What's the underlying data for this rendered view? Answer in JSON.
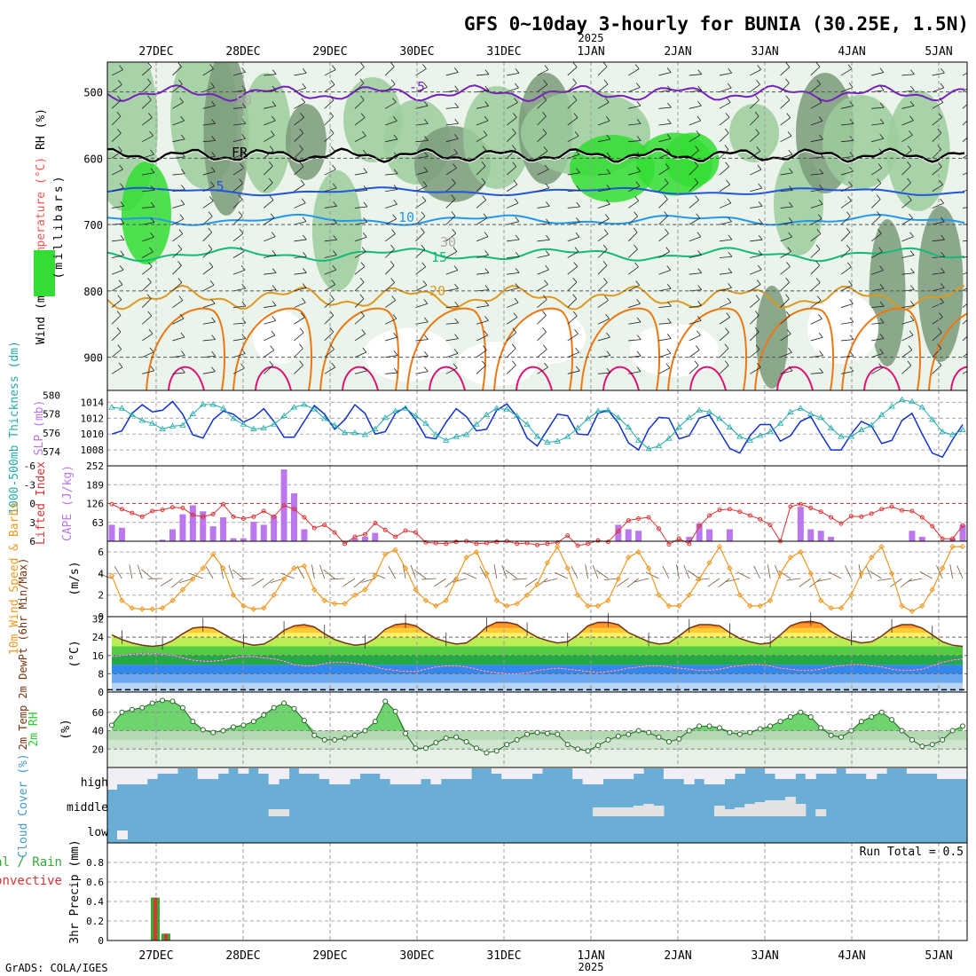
{
  "title": "GFS 0~10day 3-hourly for BUNIA (30.25E, 1.5N)",
  "footer": "GrADS: COLA/IGES",
  "run_total": "Run Total = 0.5",
  "date_labels": [
    "27DEC",
    "28DEC",
    "29DEC",
    "30DEC",
    "31DEC",
    "1JAN",
    "2JAN",
    "3JAN",
    "4JAN",
    "5JAN"
  ],
  "year_label": "2025",
  "colors": {
    "rh_light": "#e6f2e6",
    "rh_mid": "#9ccc9c",
    "rh_dark": "#7a9a7a",
    "rh_bright": "#33dd33",
    "temp_purple": "#7a1fbf",
    "temp_freeze": "#000000",
    "temp_blue": "#2255dd",
    "temp_cyan": "#2299ee",
    "temp_green": "#11bb77",
    "temp_gold": "#dd9922",
    "temp_orange": "#ee7711",
    "temp_magenta": "#dd1177",
    "slp": "#1133cc",
    "thickness": "#22aaaa",
    "cape": "#bb77ee",
    "lifted": "#dd3333",
    "wind10": "#ee9922",
    "temp2m": "#773311",
    "dewpt": "#9966aa",
    "rh2m": "#33cc33",
    "cloud": "#6aaed6",
    "precip_total": "#33aa33",
    "precip_conv": "#dd3333"
  },
  "chart_data": [
    {
      "panel": "upper-air",
      "type": "heatmap",
      "ylabels": [
        "Wind (m/s)",
        "Temperature (°C)",
        "RH (%)"
      ],
      "ylabel_units": "(millibars)",
      "y_ticks": [
        500,
        600,
        700,
        800,
        900
      ],
      "ylim": [
        950,
        455
      ],
      "contour_labels": [
        "-5",
        "FR",
        "5",
        "10",
        "15",
        "20",
        "30",
        "50"
      ]
    },
    {
      "panel": "slp-thickness",
      "type": "line",
      "ylabel_left": "1000-500mb Thickness (dm)",
      "ylabel_right": "SLP (mb)",
      "thickness_ticks": [
        574,
        576,
        578,
        580
      ],
      "slp_ticks": [
        1008,
        1010,
        1012,
        1014
      ],
      "series": [
        {
          "name": "SLP",
          "values": [
            1010.0,
            1010.4,
            1012.6,
            1013.7,
            1012.8,
            1013.0,
            1014.1,
            1012.5,
            1009.9,
            1009.5,
            1011.8,
            1012.9,
            1012.5,
            1011.5,
            1012.1,
            1013.2,
            1011.6,
            1009.6,
            1009.6,
            1011.6,
            1013.6,
            1012.5,
            1010.6,
            1011.8,
            1013.7,
            1012.6,
            1010.0,
            1010.3,
            1012.6,
            1013.4,
            1011.8,
            1009.6,
            1009.4,
            1011.5,
            1013.2,
            1012.2,
            1010.4,
            1010.6,
            1013.0,
            1013.8,
            1012.2,
            1009.5,
            1008.5,
            1010.5,
            1012.5,
            1012.3,
            1010.0,
            1009.9,
            1012.6,
            1013.0,
            1011.4,
            1008.9,
            1008.0,
            1010.6,
            1012.1,
            1012.0,
            1009.4,
            1009.8,
            1012.0,
            1012.4,
            1010.3,
            1008.2,
            1007.6,
            1009.8,
            1011.2,
            1011.2,
            1009.1,
            1009.8,
            1011.6,
            1012.2,
            1010.0,
            1008.0,
            1008.0,
            1010.0,
            1011.6,
            1011.0,
            1008.8,
            1009.2,
            1011.7,
            1012.6,
            1010.0,
            1007.6,
            1007.1,
            1009.3,
            1011.2
          ]
        },
        {
          "name": "1000-500mb Thickness",
          "values": [
            578.7,
            578.6,
            577.9,
            577.3,
            577.0,
            576.4,
            576.7,
            576.8,
            578.0,
            579.0,
            579.0,
            578.6,
            577.5,
            576.9,
            576.4,
            576.5,
            576.9,
            577.8,
            578.7,
            579.0,
            578.5,
            577.5,
            576.8,
            576.0,
            576.0,
            575.8,
            576.4,
            577.6,
            578.3,
            578.6,
            577.8,
            577.0,
            575.8,
            575.2,
            575.6,
            575.8,
            576.9,
            577.9,
            578.6,
            578.5,
            577.8,
            576.9,
            575.6,
            575.0,
            575.1,
            575.6,
            576.5,
            577.5,
            578.3,
            578.4,
            577.6,
            576.6,
            575.2,
            574.3,
            574.6,
            575.4,
            576.6,
            577.6,
            578.4,
            578.2,
            577.5,
            576.6,
            575.6,
            575.2,
            575.7,
            576.1,
            577.0,
            578.2,
            578.6,
            578.0,
            577.6,
            576.5,
            575.6,
            575.6,
            576.3,
            576.8,
            577.9,
            578.8,
            579.5,
            579.3,
            578.7,
            577.4,
            576.1,
            575.8,
            576.3
          ]
        }
      ]
    },
    {
      "panel": "cape-lifted-index",
      "type": "bar",
      "ylabel_left": "Lifted Index",
      "ylabel_right": "CAPE (J/kg)",
      "li_ticks": [
        "-6",
        "-3",
        "0",
        "3",
        "6"
      ],
      "cape_ticks": [
        63,
        126,
        189,
        252
      ],
      "cape_ylim": [
        0,
        252
      ],
      "li_ylim": [
        -6,
        6
      ],
      "series": [
        {
          "name": "CAPE",
          "values": [
            55,
            45,
            0,
            0,
            0,
            5,
            40,
            90,
            120,
            100,
            50,
            80,
            10,
            10,
            65,
            55,
            85,
            240,
            160,
            40,
            0,
            0,
            0,
            0,
            10,
            15,
            28,
            0,
            0,
            0,
            0,
            0,
            0,
            0,
            0,
            0,
            0,
            0,
            0,
            0,
            0,
            0,
            0,
            0,
            0,
            0,
            0,
            0,
            0,
            0,
            55,
            40,
            35,
            0,
            0,
            0,
            0,
            15,
            60,
            40,
            0,
            40,
            0,
            0,
            0,
            0,
            0,
            0,
            115,
            40,
            35,
            15,
            0,
            0,
            0,
            0,
            0,
            0,
            0,
            35,
            15,
            0,
            0,
            10,
            55
          ]
        },
        {
          "name": "Lifted Index",
          "values": [
            0.1,
            0.9,
            1.5,
            2.1,
            1.2,
            1.0,
            0.6,
            0.7,
            1.8,
            2.1,
            1.7,
            0.1,
            2.1,
            2.4,
            2.1,
            1.2,
            2.1,
            0.3,
            0.9,
            2.2,
            3.9,
            3.4,
            4.6,
            6.4,
            5.3,
            4.9,
            3.1,
            4.2,
            5.3,
            4.3,
            4.6,
            6.2,
            6.3,
            6.4,
            6.1,
            6.0,
            6.4,
            6.3,
            6.1,
            6.0,
            6.4,
            6.3,
            6.6,
            6.4,
            6.2,
            5.1,
            6.7,
            6.4,
            5.9,
            6.1,
            4.4,
            2.7,
            2.4,
            2.2,
            4.0,
            6.5,
            5.6,
            6.4,
            3.6,
            1.9,
            1.0,
            0.9,
            1.3,
            1.9,
            2.5,
            3.4,
            6.0,
            0.5,
            0.1,
            0.7,
            1.3,
            2.2,
            3.2,
            2.0,
            2.1,
            1.6,
            0.9,
            0.5,
            1.1,
            1.2,
            2.2,
            3.6,
            5.6,
            5.6,
            3.5
          ]
        }
      ]
    },
    {
      "panel": "10m-wind",
      "type": "line",
      "ylabel": "10m Wind Speed & Barbs",
      "ylabel_units": "(m/s)",
      "y_ticks": [
        0,
        2,
        4,
        6
      ],
      "ylim": [
        0,
        7
      ],
      "series": [
        {
          "name": "10m Wind Speed",
          "values": [
            3.8,
            1.5,
            0.8,
            0.7,
            0.7,
            0.8,
            1.5,
            2.5,
            3.5,
            4.5,
            5.8,
            4.5,
            2.0,
            1.0,
            0.7,
            0.8,
            2.0,
            3.5,
            4.5,
            4.7,
            2.5,
            1.5,
            1.2,
            1.2,
            2.0,
            2.5,
            3.8,
            5.8,
            6.2,
            4.5,
            2.5,
            1.5,
            1.0,
            1.5,
            3.5,
            5.5,
            6.0,
            4.0,
            1.5,
            1.0,
            1.2,
            2.0,
            3.0,
            5.0,
            6.5,
            4.5,
            2.0,
            1.0,
            1.0,
            1.5,
            3.5,
            5.5,
            6.0,
            4.5,
            2.0,
            1.0,
            1.0,
            2.0,
            3.5,
            5.0,
            6.5,
            4.5,
            2.0,
            1.0,
            1.0,
            1.5,
            4.0,
            5.5,
            6.0,
            4.0,
            1.5,
            0.8,
            0.8,
            2.0,
            4.0,
            5.5,
            6.5,
            4.0,
            1.0,
            0.5,
            1.0,
            2.5,
            4.5,
            6.5,
            6.5
          ]
        }
      ]
    },
    {
      "panel": "2m-temp",
      "type": "area",
      "ylabel": "2m Temp 2m DewPt (6hr Min/Max)",
      "ylabel_units": "(°C)",
      "y_ticks": [
        0,
        8,
        16,
        24,
        32
      ],
      "ylim": [
        0,
        33
      ],
      "series": [
        {
          "name": "2m Temp",
          "values": [
            25.0,
            23.0,
            21.5,
            20.5,
            20.0,
            20.5,
            22.5,
            25.5,
            28.0,
            28.5,
            28.0,
            25.5,
            23.0,
            21.5,
            20.5,
            21.0,
            23.5,
            27.0,
            29.0,
            29.5,
            28.5,
            25.5,
            23.0,
            21.5,
            20.5,
            21.0,
            23.5,
            27.5,
            29.5,
            30.0,
            29.0,
            26.0,
            23.5,
            22.0,
            21.0,
            21.5,
            24.5,
            28.5,
            30.5,
            30.5,
            29.5,
            26.5,
            24.0,
            22.5,
            21.5,
            22.0,
            25.0,
            29.0,
            30.5,
            30.5,
            29.5,
            26.0,
            24.0,
            22.0,
            21.0,
            21.5,
            24.5,
            28.0,
            29.5,
            29.5,
            29.0,
            26.0,
            23.5,
            22.0,
            21.0,
            21.5,
            25.0,
            29.0,
            30.5,
            31.0,
            30.0,
            26.5,
            24.0,
            22.5,
            21.5,
            22.0,
            24.5,
            28.0,
            29.5,
            29.5,
            28.0,
            25.0,
            22.0,
            20.5,
            20.0
          ]
        },
        {
          "name": "2m DewPt",
          "values": [
            15.5,
            16.0,
            16.5,
            17.0,
            17.0,
            16.5,
            16.0,
            15.0,
            14.0,
            13.5,
            13.5,
            14.0,
            15.0,
            15.5,
            15.5,
            15.0,
            14.5,
            13.5,
            12.0,
            11.5,
            11.5,
            12.5,
            13.0,
            13.0,
            12.5,
            12.0,
            11.0,
            10.0,
            9.5,
            9.0,
            9.0,
            10.0,
            11.0,
            11.5,
            11.5,
            11.0,
            10.0,
            9.0,
            8.5,
            8.0,
            8.0,
            8.5,
            9.5,
            10.0,
            10.5,
            10.0,
            9.5,
            9.0,
            8.5,
            9.0,
            9.5,
            10.5,
            11.0,
            11.5,
            11.5,
            11.0,
            10.5,
            10.0,
            9.5,
            9.5,
            10.0,
            11.0,
            11.5,
            12.0,
            12.0,
            11.5,
            10.5,
            10.0,
            9.5,
            9.5,
            10.0,
            11.0,
            11.5,
            12.0,
            12.0,
            11.5,
            11.0,
            10.0,
            9.5,
            9.5,
            10.0,
            11.5,
            13.0,
            14.0,
            14.5
          ]
        }
      ]
    },
    {
      "panel": "2m-rh",
      "type": "area",
      "ylabel": "2m RH",
      "ylabel_units": "(%)",
      "y_ticks": [
        20,
        40,
        60
      ],
      "ylim": [
        0,
        82
      ],
      "series": [
        {
          "name": "2m RH",
          "values": [
            46,
            60,
            63,
            65,
            70,
            73,
            72,
            65,
            50,
            41,
            38,
            40,
            44,
            46,
            50,
            57,
            65,
            70,
            64,
            51,
            35,
            30,
            30,
            32,
            35,
            40,
            50,
            72,
            61,
            37,
            21,
            21,
            27,
            32,
            33,
            28,
            21,
            16,
            18,
            25,
            30,
            36,
            38,
            37,
            36,
            25,
            20,
            18,
            24,
            30,
            34,
            36,
            40,
            38,
            33,
            28,
            31,
            40,
            45,
            45,
            43,
            38,
            36,
            38,
            42,
            45,
            50,
            55,
            60,
            55,
            43,
            35,
            33,
            40,
            50,
            55,
            60,
            52,
            40,
            30,
            23,
            25,
            30,
            40,
            45
          ]
        }
      ]
    },
    {
      "panel": "cloud-cover",
      "type": "heatmap",
      "ylabel": "Cloud Cover (%)",
      "levels": [
        "high",
        "middle",
        "low"
      ]
    },
    {
      "panel": "precip",
      "type": "bar",
      "ylabel": "3hr Precip (mm)",
      "legend": [
        "Total / Rain",
        "Convective"
      ],
      "y_ticks": [
        0,
        0.2,
        0.4,
        0.6,
        0.8
      ],
      "ylim": [
        0,
        1.0
      ],
      "x": [
        "27DEC 00Z",
        "27DEC 03Z"
      ],
      "series": [
        {
          "name": "Total / Rain",
          "values": [
            0.44,
            0.07
          ]
        },
        {
          "name": "Convective",
          "values": [
            0.44,
            0.07
          ]
        }
      ]
    }
  ]
}
